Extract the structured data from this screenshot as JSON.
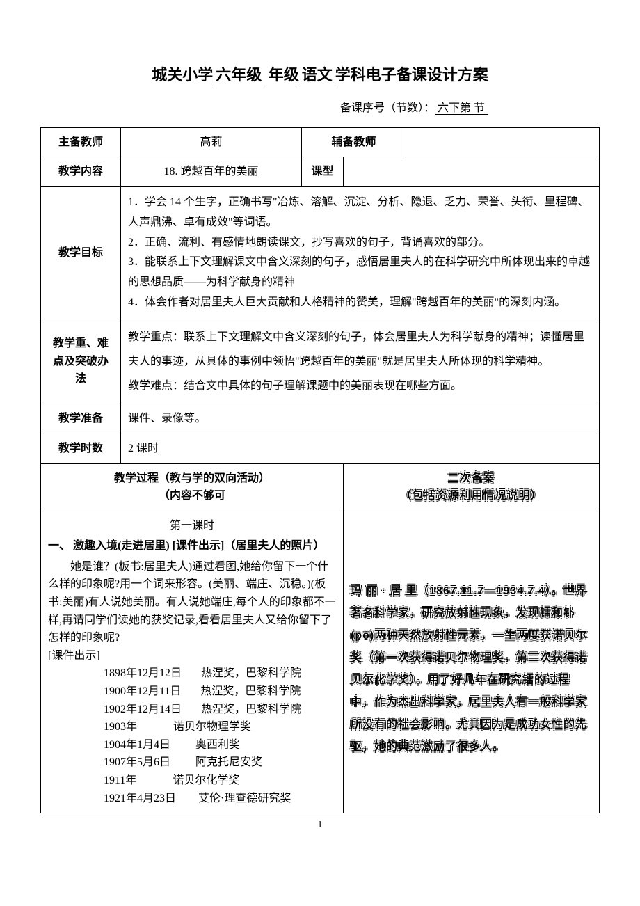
{
  "title": {
    "school": "城关小学",
    "grade": "六年级",
    "grade_suffix": " 年级",
    "subject": "语文",
    "suffix": "学科电子备课设计方案"
  },
  "subheader": {
    "prefix": "备课序号（节数）：",
    "value": "六下第    节"
  },
  "rows": {
    "main_teacher_label": "主备教师",
    "main_teacher": "高莉",
    "assist_teacher_label": "辅备教师",
    "assist_teacher": "",
    "content_label": "教学内容",
    "content": "18. 跨越百年的美丽",
    "type_label": "课型",
    "type_value": "",
    "goals_label": "教学目标",
    "goals": [
      "1．学会 14 个生字，正确书写\"冶炼、溶解、沉淀、分析、隐退、乏力、荣誉、头衔、里程碑、人声鼎沸、卓有成效\"等词语。",
      "2．正确、流利、有感情地朗读课文，抄写喜欢的句子，背诵喜欢的部分。",
      "3．能联系上下文理解课文中含义深刻的句子，感悟居里夫人的在科学研究中所体现出来的卓越的思想品质——为科学献身的精神",
      "4．体会作者对居里夫人巨大贡献和人格精神的赞美，理解\"跨越百年的美丽\"的深刻内涵。"
    ],
    "emphasis_label": "教学重、难点及突破办法",
    "emphasis_point": "教学重点：联系上下文理解文中含义深刻的句子，体会居里夫人为科学献身的精神；读懂居里夫人的事迹，从具体的事例中领悟\"跨越百年的美丽\"就是居里夫人所体现的科学精神。",
    "difficulty_point": "教学难点：结合文中具体的句子理解课题中的美丽表现在哪些方面。",
    "prep_label": "教学准备",
    "prep": "课件、录像等。",
    "hours_label": "教学时数",
    "hours": "2 课时"
  },
  "process": {
    "header_line1": "教学过程（教与学的双向活动）",
    "header_line2": "（内容不够可",
    "notes_header_line1": "二次备案",
    "notes_header_line2": "（包括资源利用情况说明）",
    "lesson_title": "第一课时",
    "section1_title": "一、 激趣入境(走进居里) [课件出示]（居里夫人的照片）",
    "para1": "她是谁？(板书:居里夫人)通过看图,她给你留下一个什么样的印象呢?用一个词来形容。(美丽、端庄、沉稳。)(板书:美丽)有人说她美丽。有人说她端庄,每个人的印象都不一样,再请同学们读她的获奖记录,看看居里夫人又给你留下了怎样的印象呢?",
    "slide_cue": " [课件出示]",
    "awards": [
      {
        "date": "1898年12月12日",
        "name": "热涅奖，巴黎科学院"
      },
      {
        "date": "1900年12月11日",
        "name": "热涅奖，巴黎科学院"
      },
      {
        "date": "1902年12月14日",
        "name": "热涅奖，巴黎科学院"
      },
      {
        "date": "1903年",
        "name": "诺贝尔物理学奖"
      },
      {
        "date": "1904年1月4日",
        "name": "奥西利奖"
      },
      {
        "date": "1907年5月6日",
        "name": "阿克托尼安奖"
      },
      {
        "date": "1911年",
        "name": "诺贝尔化学奖"
      },
      {
        "date": "1921年4月23日",
        "name": "艾伦·理查德研究奖"
      }
    ],
    "notes_text": "玛 丽 · 居 里（1867.11.7—1934.7.4）。世界著名科学家，研究放射性现象，发现镭和钋(pō)两种天然放射性元素，一生两度获诺贝尔奖（第一次获得诺贝尔物理奖，第二次获得诺贝尔化学奖）。用了好几年在研究镭的过程中，作为杰出科学家，居里夫人有一般科学家所没有的社会影响。尤其因为是成功女性的先驱，她的典范激励了很多人。"
  },
  "page_number": "1",
  "colors": {
    "text": "#000000",
    "background": "#ffffff",
    "border": "#000000"
  }
}
